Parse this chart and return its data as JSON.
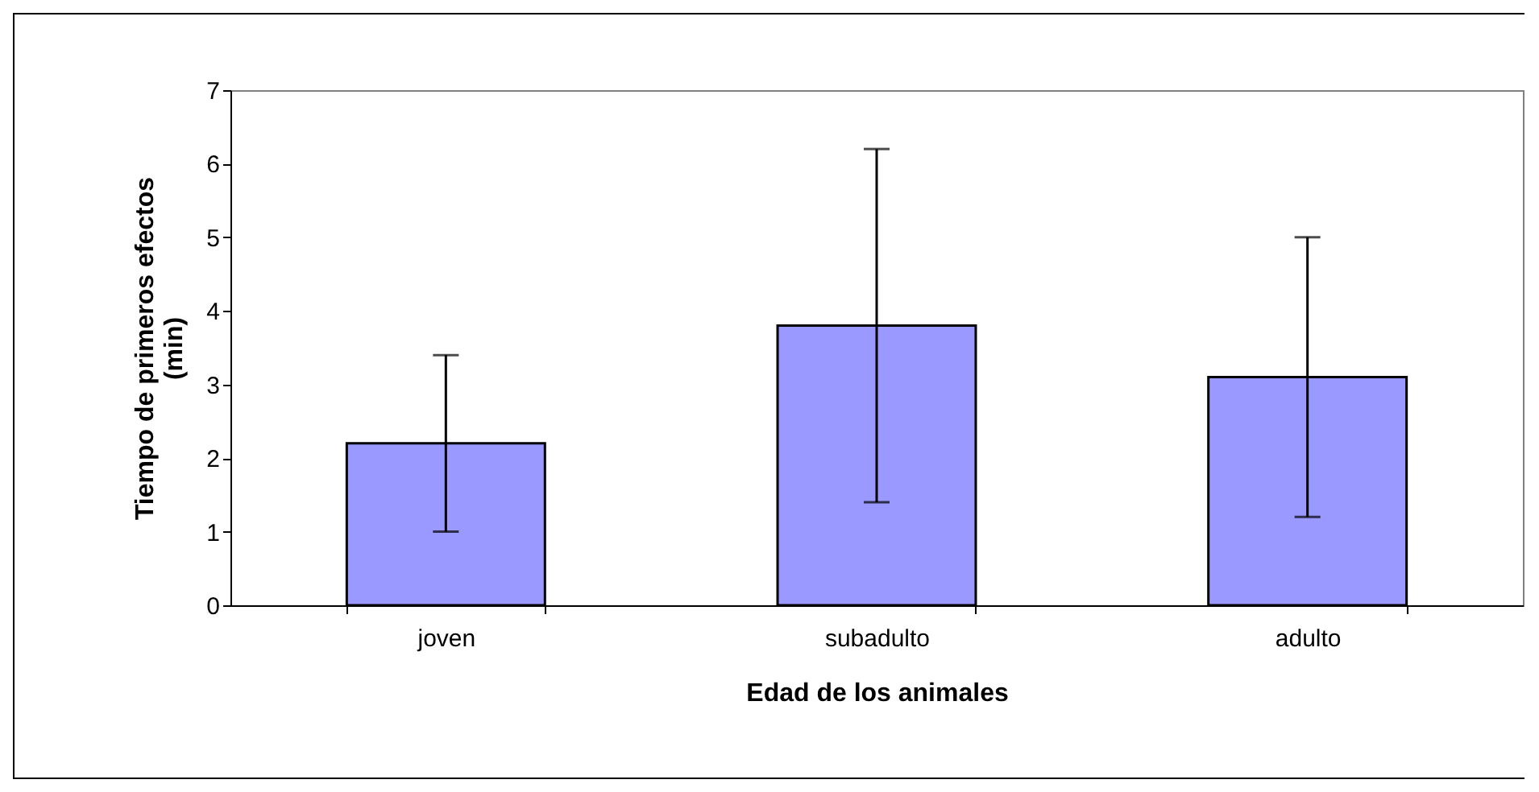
{
  "chart_data": {
    "type": "bar",
    "xlabel": "Edad de los animales",
    "ylabel": "Tiempo de primeros efectos (min)",
    "categories": [
      "joven",
      "subadulto",
      "adulto"
    ],
    "values": [
      2.2,
      3.8,
      3.1
    ],
    "errors": [
      1.2,
      2.4,
      1.9
    ],
    "color": "#9999ff",
    "ylim": [
      0,
      7
    ],
    "yticks": [
      0,
      1,
      2,
      3,
      4,
      5,
      6,
      7
    ],
    "grid": false
  }
}
